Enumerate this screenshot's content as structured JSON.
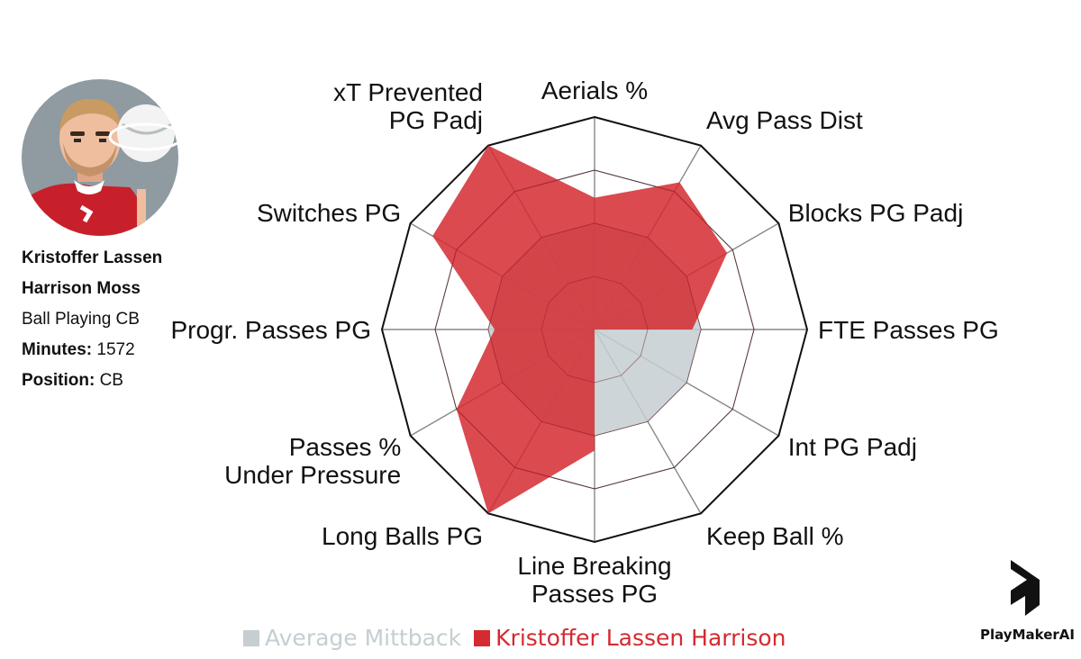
{
  "player": {
    "name": "Kristoffer Lassen Harrison Moss",
    "role": "Ball Playing CB",
    "minutes_label": "Minutes:",
    "minutes": "1572",
    "position_label": "Position:",
    "position": "CB"
  },
  "chart_data": {
    "type": "radar",
    "axes": [
      "Aerials %",
      "Avg Pass Dist",
      "Blocks PG Padj",
      "FTE Passes PG",
      "Int PG Padj",
      "Keep Ball %",
      "Line Breaking Passes PG",
      "Long Balls PG",
      "Passes % Under Pressure",
      "Progr. Passes PG",
      "Switches PG",
      "xT Prevented PG Padj"
    ],
    "scale": [
      0,
      1
    ],
    "rings": 4,
    "series": [
      {
        "name": "Average Mittback",
        "color": "#c5ced1",
        "values": [
          0.5,
          0.5,
          0.5,
          0.5,
          0.5,
          0.5,
          0.5,
          0.5,
          0.5,
          0.5,
          0.5,
          0.5
        ]
      },
      {
        "name": "Kristoffer Lassen Harrison",
        "color": "#d42a30",
        "values": [
          0.62,
          0.8,
          0.72,
          0.46,
          0.0,
          0.0,
          0.57,
          1.0,
          0.75,
          0.47,
          0.88,
          1.0
        ]
      }
    ]
  },
  "legend": {
    "avg_label": "Average Mittback",
    "avg_color": "#c5ced1",
    "player_label": "Kristoffer Lassen Harrison",
    "player_color": "#d42a30"
  },
  "brand": {
    "name": "PlayMakerAI"
  },
  "icons": {
    "avatar": "player-avatar-icon",
    "logo": "playmaker-logo-icon"
  }
}
